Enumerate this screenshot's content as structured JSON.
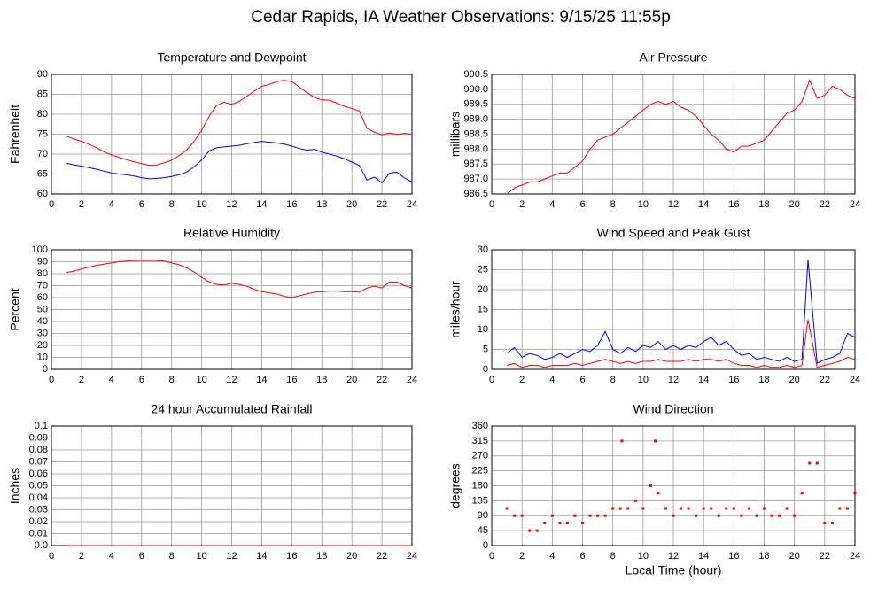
{
  "title": "Cedar Rapids, IA Weather Observations: 9/15/25 11:55p",
  "chart_data": [
    {
      "type": "line",
      "title": "Temperature and Dewpoint",
      "ylabel": "Fahrenheit",
      "xlim": [
        0,
        24
      ],
      "xticks": [
        0,
        2,
        4,
        6,
        8,
        10,
        12,
        14,
        16,
        18,
        20,
        22,
        24
      ],
      "ylim": [
        60,
        90
      ],
      "yticks": [
        60,
        65,
        70,
        75,
        80,
        85,
        90
      ],
      "grid": true,
      "x": [
        1,
        1.5,
        2,
        2.5,
        3,
        3.5,
        4,
        4.5,
        5,
        5.5,
        6,
        6.5,
        7,
        7.5,
        8,
        8.5,
        9,
        9.5,
        10,
        10.5,
        11,
        11.5,
        12,
        12.5,
        13,
        13.5,
        14,
        14.5,
        15,
        15.5,
        16,
        16.5,
        17,
        17.5,
        18,
        18.5,
        19,
        19.5,
        20,
        20.5,
        21,
        21.5,
        22,
        22.5,
        23,
        23.5,
        24
      ],
      "series": [
        {
          "color": "#ff0000",
          "values": [
            74.5,
            73.8,
            73.2,
            72.5,
            71.6,
            70.6,
            69.8,
            69.2,
            68.6,
            68.1,
            67.6,
            67.2,
            67.3,
            67.8,
            68.5,
            69.6,
            71,
            73.2,
            76,
            79.5,
            82.2,
            83,
            82.5,
            83.2,
            84.5,
            85.8,
            87,
            87.5,
            88.2,
            88.5,
            88.2,
            86.8,
            85.5,
            84.2,
            83.6,
            83.5,
            82.8,
            82,
            81.4,
            80.8,
            76.5,
            75.5,
            74.8,
            75.3,
            74.9,
            75.2,
            75
          ]
        },
        {
          "color": "#0000ff",
          "values": [
            67.7,
            67.3,
            67,
            66.6,
            66.2,
            65.7,
            65.3,
            65,
            64.8,
            64.5,
            64.1,
            63.8,
            63.9,
            64.1,
            64.4,
            64.8,
            65.5,
            66.8,
            68.5,
            70.8,
            71.6,
            71.8,
            72,
            72.2,
            72.6,
            72.9,
            73.2,
            73,
            72.8,
            72.5,
            72,
            71.4,
            71,
            71.2,
            70.5,
            70,
            69.5,
            68.8,
            68,
            67.2,
            63.5,
            64.2,
            62.8,
            65.2,
            65.5,
            64,
            63
          ]
        }
      ]
    },
    {
      "type": "line",
      "title": "Air Pressure",
      "ylabel": "millibars",
      "xlim": [
        0,
        24
      ],
      "xticks": [
        0,
        2,
        4,
        6,
        8,
        10,
        12,
        14,
        16,
        18,
        20,
        22,
        24
      ],
      "ylim": [
        986.5,
        990.5
      ],
      "yticks": [
        986.5,
        {
          "value": 987,
          "label": "987.0"
        },
        987.5,
        {
          "value": 988,
          "label": "988.0"
        },
        988.5,
        {
          "value": 989,
          "label": "989.0"
        },
        989.5,
        {
          "value": 990,
          "label": "990.0"
        },
        990.5
      ],
      "grid": true,
      "x": [
        1,
        1.5,
        2,
        2.5,
        3,
        3.5,
        4,
        4.5,
        5,
        5.5,
        6,
        6.5,
        7,
        7.5,
        8,
        8.5,
        9,
        9.5,
        10,
        10.5,
        11,
        11.5,
        12,
        12.5,
        13,
        13.5,
        14,
        14.5,
        15,
        15.5,
        16,
        16.5,
        17,
        17.5,
        18,
        18.5,
        19,
        19.5,
        20,
        20.5,
        21,
        21.5,
        22,
        22.5,
        23,
        23.5,
        24
      ],
      "series": [
        {
          "color": "#ff0000",
          "values": [
            986.5,
            986.7,
            986.8,
            986.9,
            986.9,
            987,
            987.1,
            987.2,
            987.2,
            987.4,
            987.6,
            988,
            988.3,
            988.4,
            988.5,
            988.7,
            988.9,
            989.1,
            989.3,
            989.5,
            989.6,
            989.5,
            989.6,
            989.4,
            989.3,
            989.1,
            988.8,
            988.5,
            988.3,
            988,
            987.9,
            988.1,
            988.1,
            988.2,
            988.3,
            988.6,
            988.9,
            989.2,
            989.3,
            989.6,
            990.3,
            989.7,
            989.8,
            990.1,
            990,
            989.8,
            989.7
          ]
        }
      ]
    },
    {
      "type": "line",
      "title": "Relative Humidity",
      "ylabel": "Percent",
      "xlim": [
        0,
        24
      ],
      "xticks": [
        0,
        2,
        4,
        6,
        8,
        10,
        12,
        14,
        16,
        18,
        20,
        22,
        24
      ],
      "ylim": [
        0,
        100
      ],
      "yticks": [
        0,
        10,
        20,
        30,
        40,
        50,
        60,
        70,
        80,
        90,
        100
      ],
      "grid": true,
      "x": [
        1,
        1.5,
        2,
        2.5,
        3,
        3.5,
        4,
        4.5,
        5,
        5.5,
        6,
        6.5,
        7,
        7.5,
        8,
        8.5,
        9,
        9.5,
        10,
        10.5,
        11,
        11.5,
        12,
        12.5,
        13,
        13.5,
        14,
        14.5,
        15,
        15.5,
        16,
        16.5,
        17,
        17.5,
        18,
        18.5,
        19,
        19.5,
        20,
        20.5,
        21,
        21.5,
        22,
        22.5,
        23,
        23.5,
        24
      ],
      "series": [
        {
          "color": "#ff0000",
          "values": [
            81,
            82,
            84,
            85.5,
            87,
            88,
            89,
            90,
            90.5,
            91,
            91,
            91,
            91,
            90.5,
            89,
            87.5,
            85,
            81.5,
            77,
            73,
            71,
            70.5,
            72,
            71,
            69.5,
            67,
            65,
            64,
            63,
            61,
            60,
            61.5,
            63,
            64.5,
            65,
            65.5,
            65.5,
            65,
            65,
            64.5,
            68,
            69.5,
            68,
            73,
            73,
            70,
            68
          ]
        }
      ]
    },
    {
      "type": "line",
      "title": "Wind Speed and Peak Gust",
      "ylabel": "miles/hour",
      "xlim": [
        0,
        24
      ],
      "xticks": [
        0,
        2,
        4,
        6,
        8,
        10,
        12,
        14,
        16,
        18,
        20,
        22,
        24
      ],
      "ylim": [
        0,
        30
      ],
      "yticks": [
        0,
        5,
        10,
        15,
        20,
        25,
        30
      ],
      "grid": true,
      "x": [
        1,
        1.5,
        2,
        2.5,
        3,
        3.5,
        4,
        4.5,
        5,
        5.5,
        6,
        6.5,
        7,
        7.5,
        8,
        8.5,
        9,
        9.5,
        10,
        10.5,
        11,
        11.5,
        12,
        12.5,
        13,
        13.5,
        14,
        14.5,
        15,
        15.5,
        16,
        16.5,
        17,
        17.5,
        18,
        18.5,
        19,
        19.5,
        20,
        20.5,
        20.9,
        21.5,
        22,
        22.5,
        23,
        23.5,
        24
      ],
      "series": [
        {
          "color": "#0000ff",
          "values": [
            4,
            5.5,
            3,
            4,
            3.5,
            2.5,
            3,
            4,
            3,
            4,
            5,
            4.5,
            6,
            9.5,
            5,
            4,
            5.5,
            4.5,
            6,
            5.5,
            7,
            5,
            6,
            5,
            6,
            5.5,
            7,
            8,
            6,
            7,
            5,
            3.5,
            4,
            2.5,
            3,
            2.5,
            2,
            3,
            2,
            2.5,
            27.5,
            1.5,
            2.5,
            3,
            4,
            9,
            8
          ]
        },
        {
          "color": "#ff0000",
          "values": [
            1,
            1.5,
            0.5,
            1,
            1,
            0.5,
            1,
            1,
            1,
            1.5,
            1,
            1.5,
            2,
            2.5,
            2,
            1.5,
            2,
            1.5,
            2,
            2,
            2.5,
            2,
            2,
            2,
            2.5,
            2,
            2.5,
            2.5,
            2,
            2.5,
            1.5,
            1,
            1,
            0.5,
            1,
            0.5,
            0.5,
            1,
            0.5,
            1,
            12.5,
            0.5,
            1,
            1.5,
            2,
            3,
            2.5
          ]
        }
      ]
    },
    {
      "type": "line",
      "title": "24 hour Accumulated Rainfall",
      "ylabel": "Inches",
      "xlim": [
        0,
        24
      ],
      "xticks": [
        0,
        2,
        4,
        6,
        8,
        10,
        12,
        14,
        16,
        18,
        20,
        22,
        24
      ],
      "ylim": [
        0,
        0.1
      ],
      "yticks": [
        {
          "value": 0,
          "label": "0.0"
        },
        0.01,
        0.02,
        0.03,
        0.04,
        0.05,
        0.06,
        0.07,
        0.08,
        0.09,
        0.1
      ],
      "grid": true,
      "x": [
        1,
        24
      ],
      "series": [
        {
          "color": "#ff0000",
          "values": [
            0,
            0
          ]
        }
      ]
    },
    {
      "type": "scatter",
      "title": "Wind Direction",
      "ylabel": "degrees",
      "xlabel": "Local Time (hour)",
      "xlim": [
        0,
        24
      ],
      "xticks": [
        0,
        2,
        4,
        6,
        8,
        10,
        12,
        14,
        16,
        18,
        20,
        22,
        24
      ],
      "ylim": [
        0,
        360
      ],
      "yticks": [
        0,
        45,
        90,
        135,
        180,
        225,
        270,
        315,
        360
      ],
      "grid": true,
      "color": "#ff0000",
      "x": [
        1,
        1.5,
        2,
        2.5,
        3,
        3.5,
        4,
        4.5,
        5,
        5.5,
        6,
        6.5,
        7,
        7.5,
        8,
        8.5,
        8.6,
        9,
        9.5,
        10,
        10.5,
        10.8,
        11,
        11.5,
        12,
        12.5,
        13,
        13.5,
        14,
        14.5,
        15,
        15.5,
        16,
        16.5,
        17,
        17.5,
        18,
        18.5,
        19,
        19.5,
        20,
        20.5,
        21,
        21.5,
        22,
        22.5,
        23,
        23.5,
        24
      ],
      "values": [
        112,
        90,
        90,
        45,
        45,
        68,
        90,
        68,
        68,
        90,
        68,
        90,
        90,
        90,
        112,
        112,
        315,
        112,
        135,
        112,
        180,
        315,
        158,
        112,
        90,
        112,
        112,
        90,
        112,
        112,
        90,
        112,
        112,
        90,
        112,
        90,
        112,
        90,
        90,
        112,
        90,
        158,
        248,
        248,
        68,
        68,
        112,
        112,
        158
      ]
    }
  ]
}
